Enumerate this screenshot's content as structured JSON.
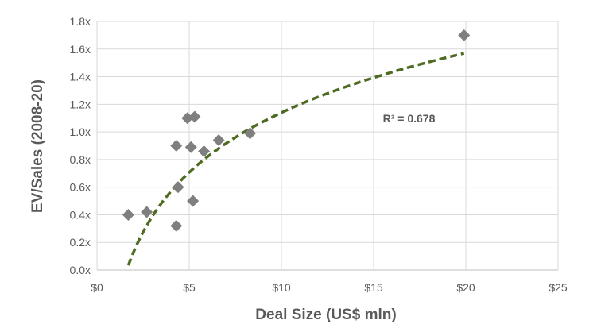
{
  "chart_data": {
    "type": "scatter",
    "xlabel": "Deal Size (US$ mln)",
    "ylabel": "EV/Sales (2008-20)",
    "xlim": [
      0,
      25
    ],
    "ylim": [
      0,
      1.8
    ],
    "x_ticks": [
      0,
      5,
      10,
      15,
      20,
      25
    ],
    "x_tick_labels": [
      "$0",
      "$5",
      "$10",
      "$15",
      "$20",
      "$25"
    ],
    "y_ticks": [
      0,
      0.2,
      0.4,
      0.6,
      0.8,
      1.0,
      1.2,
      1.4,
      1.6,
      1.8
    ],
    "y_tick_labels": [
      "0.0x",
      "0.2x",
      "0.4x",
      "0.6x",
      "0.8x",
      "1.0x",
      "1.2x",
      "1.4x",
      "1.6x",
      "1.8x"
    ],
    "grid": true,
    "points": [
      {
        "x": 1.7,
        "y": 0.4
      },
      {
        "x": 2.7,
        "y": 0.42
      },
      {
        "x": 4.3,
        "y": 0.32
      },
      {
        "x": 4.3,
        "y": 0.9
      },
      {
        "x": 4.4,
        "y": 0.6
      },
      {
        "x": 4.9,
        "y": 1.1
      },
      {
        "x": 5.1,
        "y": 0.89
      },
      {
        "x": 5.2,
        "y": 0.5
      },
      {
        "x": 5.3,
        "y": 1.11
      },
      {
        "x": 5.8,
        "y": 0.86
      },
      {
        "x": 6.6,
        "y": 0.94
      },
      {
        "x": 8.3,
        "y": 0.99
      },
      {
        "x": 19.9,
        "y": 1.7
      }
    ],
    "trendline": {
      "type": "logarithmic",
      "style": "dashed",
      "a": -0.297,
      "b": 0.624,
      "x_range": [
        1.7,
        19.9
      ],
      "r_squared_label": "R² = 0.678",
      "r_squared_at": {
        "x": 15.5,
        "y": 1.07
      }
    },
    "colors": {
      "marker": "#7f7f7f",
      "trendline": "#4e6b22",
      "grid": "#d9d9d9",
      "text": "#595959"
    }
  }
}
